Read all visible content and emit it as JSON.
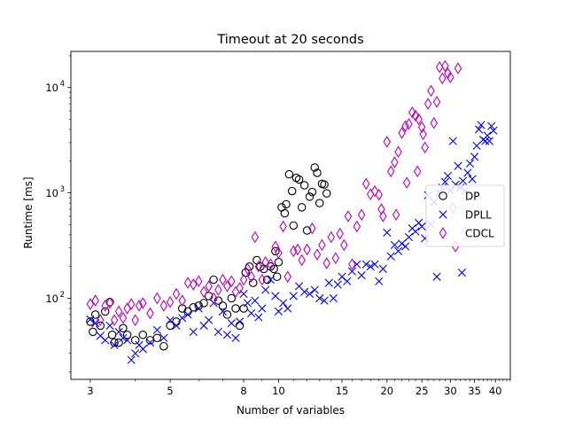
{
  "chart_data": {
    "type": "scatter",
    "title": "Timeout at 20 seconds",
    "xlabel": "Number of variables",
    "ylabel": "Runtime [ms]",
    "xscale": "log",
    "yscale": "log",
    "xlim": [
      2.65,
      44
    ],
    "ylim": [
      17,
      22000
    ],
    "xticks": [
      {
        "value": 3,
        "label": "3"
      },
      {
        "value": 5,
        "label": "5"
      },
      {
        "value": 8,
        "label": "8"
      },
      {
        "value": 10,
        "label": "10"
      },
      {
        "value": 15,
        "label": "15"
      },
      {
        "value": 20,
        "label": "20"
      },
      {
        "value": 25,
        "label": "25"
      },
      {
        "value": 30,
        "label": "30"
      },
      {
        "value": 35,
        "label": "35"
      },
      {
        "value": 40,
        "label": "40"
      }
    ],
    "yticks": [
      {
        "value": 100,
        "label": "10^2",
        "base": "10",
        "exp": "2"
      },
      {
        "value": 1000,
        "label": "10^3",
        "base": "10",
        "exp": "3"
      },
      {
        "value": 10000,
        "label": "10^4",
        "base": "10",
        "exp": "4"
      }
    ],
    "legend_position": "center-right",
    "grid": false,
    "series": [
      {
        "name": "DP",
        "marker": "circle",
        "color": "#000000",
        "points": [
          [
            3.0,
            60
          ],
          [
            3.05,
            48
          ],
          [
            3.1,
            70
          ],
          [
            3.2,
            55
          ],
          [
            3.3,
            75
          ],
          [
            3.4,
            92
          ],
          [
            3.45,
            45
          ],
          [
            3.5,
            38
          ],
          [
            3.6,
            38
          ],
          [
            3.7,
            52
          ],
          [
            3.8,
            45
          ],
          [
            4.0,
            40
          ],
          [
            4.2,
            45
          ],
          [
            4.4,
            40
          ],
          [
            4.6,
            42
          ],
          [
            4.8,
            35
          ],
          [
            5.0,
            55
          ],
          [
            5.2,
            60
          ],
          [
            5.4,
            80
          ],
          [
            5.6,
            75
          ],
          [
            5.8,
            82
          ],
          [
            6.0,
            85
          ],
          [
            6.2,
            90
          ],
          [
            6.4,
            105
          ],
          [
            6.6,
            150
          ],
          [
            6.8,
            95
          ],
          [
            7.0,
            85
          ],
          [
            7.2,
            70
          ],
          [
            7.4,
            100
          ],
          [
            7.6,
            80
          ],
          [
            7.8,
            55
          ],
          [
            8.0,
            80
          ],
          [
            8.1,
            175
          ],
          [
            8.3,
            200
          ],
          [
            8.5,
            140
          ],
          [
            8.7,
            230
          ],
          [
            8.9,
            200
          ],
          [
            9.1,
            190
          ],
          [
            9.3,
            150
          ],
          [
            9.5,
            200
          ],
          [
            9.7,
            190
          ],
          [
            9.8,
            280
          ],
          [
            9.9,
            160
          ],
          [
            10.0,
            220
          ],
          [
            10.2,
            730
          ],
          [
            10.4,
            640
          ],
          [
            10.5,
            780
          ],
          [
            10.7,
            1500
          ],
          [
            10.9,
            1040
          ],
          [
            11.0,
            490
          ],
          [
            11.2,
            1390
          ],
          [
            11.4,
            1340
          ],
          [
            11.6,
            730
          ],
          [
            11.8,
            1180
          ],
          [
            12.0,
            440
          ],
          [
            12.2,
            920
          ],
          [
            12.4,
            1020
          ],
          [
            12.6,
            1740
          ],
          [
            12.8,
            1550
          ],
          [
            13.0,
            800
          ],
          [
            13.2,
            1220
          ],
          [
            13.4,
            1200
          ],
          [
            13.6,
            990
          ]
        ]
      },
      {
        "name": "DPLL",
        "marker": "x",
        "color": "#0000ff",
        "points": [
          [
            3.0,
            63
          ],
          [
            3.1,
            58
          ],
          [
            3.2,
            44
          ],
          [
            3.3,
            40
          ],
          [
            3.4,
            55
          ],
          [
            3.5,
            36
          ],
          [
            3.6,
            48
          ],
          [
            3.7,
            42
          ],
          [
            3.8,
            40
          ],
          [
            3.9,
            26
          ],
          [
            4.0,
            30
          ],
          [
            4.1,
            36
          ],
          [
            4.2,
            33
          ],
          [
            4.4,
            38
          ],
          [
            4.6,
            50
          ],
          [
            4.8,
            42
          ],
          [
            5.0,
            62
          ],
          [
            5.2,
            55
          ],
          [
            5.4,
            65
          ],
          [
            5.6,
            70
          ],
          [
            5.8,
            48
          ],
          [
            6.0,
            80
          ],
          [
            6.2,
            55
          ],
          [
            6.4,
            62
          ],
          [
            6.6,
            90
          ],
          [
            6.8,
            48
          ],
          [
            7.0,
            75
          ],
          [
            7.2,
            45
          ],
          [
            7.4,
            58
          ],
          [
            7.6,
            42
          ],
          [
            7.8,
            60
          ],
          [
            8.0,
            110
          ],
          [
            8.2,
            90
          ],
          [
            8.4,
            72
          ],
          [
            8.6,
            95
          ],
          [
            8.8,
            66
          ],
          [
            9.0,
            80
          ],
          [
            9.2,
            120
          ],
          [
            9.5,
            150
          ],
          [
            9.8,
            105
          ],
          [
            10.0,
            75
          ],
          [
            10.3,
            90
          ],
          [
            10.6,
            80
          ],
          [
            11.0,
            105
          ],
          [
            11.4,
            130
          ],
          [
            11.8,
            115
          ],
          [
            12.2,
            110
          ],
          [
            12.6,
            120
          ],
          [
            13.0,
            100
          ],
          [
            13.4,
            95
          ],
          [
            13.8,
            140
          ],
          [
            14.2,
            100
          ],
          [
            14.6,
            135
          ],
          [
            15.0,
            160
          ],
          [
            15.5,
            145
          ],
          [
            16.0,
            180
          ],
          [
            16.5,
            210
          ],
          [
            17.0,
            165
          ],
          [
            17.5,
            210
          ],
          [
            18.0,
            200
          ],
          [
            18.5,
            210
          ],
          [
            19.0,
            145
          ],
          [
            19.5,
            190
          ],
          [
            20.0,
            420
          ],
          [
            20.5,
            250
          ],
          [
            21.0,
            320
          ],
          [
            21.5,
            280
          ],
          [
            22.0,
            330
          ],
          [
            22.5,
            310
          ],
          [
            23.0,
            380
          ],
          [
            23.5,
            460
          ],
          [
            24.0,
            430
          ],
          [
            24.5,
            520
          ],
          [
            25.0,
            480
          ],
          [
            25.5,
            370
          ],
          [
            26.0,
            950
          ],
          [
            26.5,
            500
          ],
          [
            27.0,
            820
          ],
          [
            27.5,
            160
          ],
          [
            28.0,
            1000
          ],
          [
            28.5,
            1120
          ],
          [
            29.0,
            1270
          ],
          [
            29.5,
            1450
          ],
          [
            30.0,
            1050
          ],
          [
            30.5,
            3100
          ],
          [
            31.0,
            1200
          ],
          [
            31.5,
            1800
          ],
          [
            32.0,
            1120
          ],
          [
            32.5,
            1300
          ],
          [
            33.0,
            1050
          ],
          [
            33.5,
            1550
          ],
          [
            34.0,
            1900
          ],
          [
            34.5,
            1350
          ],
          [
            35.0,
            2200
          ],
          [
            35.5,
            2800
          ],
          [
            36.0,
            4000
          ],
          [
            36.5,
            4400
          ],
          [
            37.0,
            3200
          ],
          [
            37.5,
            3100
          ],
          [
            38.0,
            3500
          ],
          [
            38.5,
            3100
          ],
          [
            39.0,
            4300
          ],
          [
            39.5,
            3900
          ],
          [
            32.3,
            175
          ]
        ]
      },
      {
        "name": "CDCL",
        "marker": "diamond",
        "color": "#bf00bf",
        "points": [
          [
            3.0,
            88
          ],
          [
            3.1,
            95
          ],
          [
            3.2,
            62
          ],
          [
            3.3,
            85
          ],
          [
            3.4,
            90
          ],
          [
            3.5,
            62
          ],
          [
            3.6,
            75
          ],
          [
            3.7,
            65
          ],
          [
            3.8,
            80
          ],
          [
            3.9,
            88
          ],
          [
            4.0,
            62
          ],
          [
            4.1,
            85
          ],
          [
            4.2,
            90
          ],
          [
            4.4,
            72
          ],
          [
            4.6,
            100
          ],
          [
            4.8,
            85
          ],
          [
            5.0,
            92
          ],
          [
            5.2,
            110
          ],
          [
            5.4,
            95
          ],
          [
            5.6,
            140
          ],
          [
            5.8,
            135
          ],
          [
            6.0,
            145
          ],
          [
            6.2,
            115
          ],
          [
            6.4,
            130
          ],
          [
            6.6,
            100
          ],
          [
            6.8,
            120
          ],
          [
            7.0,
            150
          ],
          [
            7.2,
            130
          ],
          [
            7.4,
            145
          ],
          [
            7.6,
            115
          ],
          [
            7.8,
            125
          ],
          [
            8.0,
            150
          ],
          [
            8.2,
            190
          ],
          [
            8.4,
            160
          ],
          [
            8.6,
            380
          ],
          [
            8.8,
            200
          ],
          [
            9.0,
            150
          ],
          [
            9.2,
            220
          ],
          [
            9.5,
            210
          ],
          [
            9.8,
            310
          ],
          [
            10.0,
            270
          ],
          [
            10.3,
            480
          ],
          [
            10.6,
            160
          ],
          [
            11.0,
            280
          ],
          [
            11.3,
            290
          ],
          [
            11.6,
            230
          ],
          [
            12.0,
            290
          ],
          [
            12.4,
            460
          ],
          [
            12.8,
            260
          ],
          [
            13.2,
            320
          ],
          [
            13.6,
            215
          ],
          [
            14.0,
            380
          ],
          [
            14.4,
            240
          ],
          [
            14.8,
            410
          ],
          [
            15.2,
            320
          ],
          [
            15.6,
            600
          ],
          [
            16.0,
            210
          ],
          [
            16.5,
            480
          ],
          [
            17.0,
            620
          ],
          [
            17.5,
            1220
          ],
          [
            18.0,
            970
          ],
          [
            18.5,
            1040
          ],
          [
            19.0,
            960
          ],
          [
            19.5,
            600
          ],
          [
            20.0,
            3050
          ],
          [
            20.5,
            1600
          ],
          [
            21.0,
            1950
          ],
          [
            21.5,
            2450
          ],
          [
            22.0,
            3700
          ],
          [
            22.5,
            4300
          ],
          [
            23.0,
            4500
          ],
          [
            23.5,
            5800
          ],
          [
            24.0,
            5400
          ],
          [
            24.5,
            5000
          ],
          [
            25.0,
            4200
          ],
          [
            25.5,
            2700
          ],
          [
            26.0,
            7000
          ],
          [
            26.5,
            9300
          ],
          [
            27.0,
            4600
          ],
          [
            27.5,
            7300
          ],
          [
            28.0,
            15600
          ],
          [
            28.5,
            12200
          ],
          [
            29.0,
            16000
          ],
          [
            29.5,
            13600
          ],
          [
            30.0,
            12500
          ],
          [
            30.5,
            720
          ],
          [
            31.0,
            310
          ],
          [
            31.5,
            15200
          ],
          [
            19.3,
            700
          ],
          [
            21.2,
            620
          ],
          [
            22.7,
            1250
          ],
          [
            24.3,
            1600
          ],
          [
            25.2,
            3600
          ]
        ]
      }
    ]
  }
}
